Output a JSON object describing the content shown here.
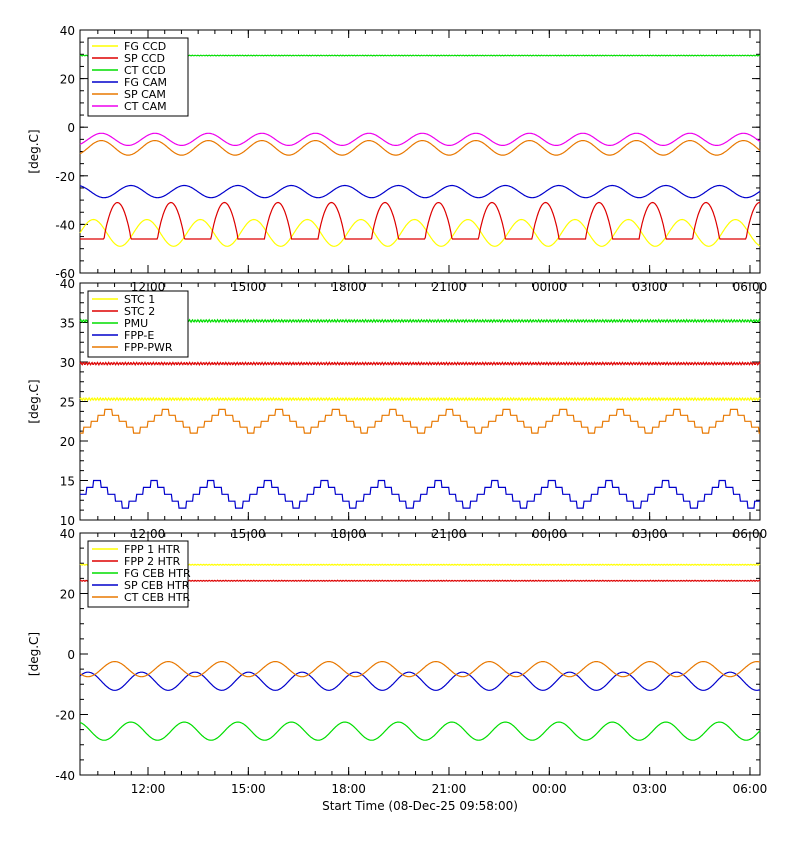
{
  "chart_data": [
    {
      "type": "line",
      "ylabel": "[deg.C]",
      "ylim": [
        -60,
        40
      ],
      "yticks": [
        40,
        20,
        0,
        -20,
        -40,
        -60
      ],
      "xlim_hours": [
        9.9667,
        30.3
      ],
      "xtick_labels": [
        "12:00",
        "15:00",
        "18:00",
        "21:00",
        "00:00",
        "03:00",
        "06:00"
      ],
      "legend_position": "top-left",
      "series": [
        {
          "name": "FG CCD",
          "color": "#ffff00",
          "shape": "sine",
          "center": -43.5,
          "amplitude": 5.5,
          "period_h": 1.6,
          "phase": 0.0
        },
        {
          "name": "SP CCD",
          "color": "#dd0000",
          "shape": "peak",
          "min": -46,
          "max": -31,
          "period_h": 1.6,
          "phase": 0.55
        },
        {
          "name": "CT CCD",
          "color": "#00dd00",
          "shape": "flat",
          "value": 29.5
        },
        {
          "name": "FG CAM",
          "color": "#0000cc",
          "shape": "sine",
          "center": -26.5,
          "amplitude": 2.5,
          "period_h": 1.6,
          "phase": 0.3
        },
        {
          "name": "SP CAM",
          "color": "#e87800",
          "shape": "sine",
          "center": -8.5,
          "amplitude": 3.0,
          "period_h": 1.6,
          "phase": 0.85
        },
        {
          "name": "CT CAM",
          "color": "#ee00ee",
          "shape": "sine",
          "center": -5.0,
          "amplitude": 2.5,
          "period_h": 1.6,
          "phase": 0.85
        }
      ]
    },
    {
      "type": "line",
      "ylabel": "[deg.C]",
      "ylim": [
        10,
        40
      ],
      "yticks": [
        40,
        35,
        30,
        25,
        20,
        15,
        10
      ],
      "xlim_hours": [
        9.9667,
        30.3
      ],
      "xtick_labels": [
        "12:00",
        "15:00",
        "18:00",
        "21:00",
        "00:00",
        "03:00",
        "06:00"
      ],
      "legend_position": "top-left",
      "series": [
        {
          "name": "STC 1",
          "color": "#ffff00",
          "shape": "flat",
          "value": 25.3
        },
        {
          "name": "STC 2",
          "color": "#dd0000",
          "shape": "flat",
          "value": 29.8
        },
        {
          "name": "PMU",
          "color": "#00dd00",
          "shape": "flat",
          "value": 35.2
        },
        {
          "name": "FPP-E",
          "color": "#0000cc",
          "shape": "steps",
          "min": 11.5,
          "max": 15,
          "period_h": 1.7,
          "phase": 0.2
        },
        {
          "name": "FPP-PWR",
          "color": "#e87800",
          "shape": "steps",
          "min": 21,
          "max": 24,
          "period_h": 1.7,
          "phase": 0.0
        }
      ]
    },
    {
      "type": "line",
      "ylabel": "[deg.C]",
      "ylim": [
        -40,
        40
      ],
      "yticks": [
        40,
        20,
        0,
        -20,
        -40
      ],
      "xlim_hours": [
        9.9667,
        30.3
      ],
      "xtick_labels": [
        "12:00",
        "15:00",
        "18:00",
        "21:00",
        "00:00",
        "03:00",
        "06:00"
      ],
      "xlabel": "Start Time (08-Dec-25 09:58:00)",
      "legend_position": "top-left",
      "series": [
        {
          "name": "FPP 1 HTR",
          "color": "#ffff00",
          "shape": "flat",
          "value": 29.5
        },
        {
          "name": "FPP 2 HTR",
          "color": "#dd0000",
          "shape": "flat",
          "value": 24.2
        },
        {
          "name": "FG CEB HTR",
          "color": "#00dd00",
          "shape": "sine",
          "center": -25.5,
          "amplitude": 3.0,
          "period_h": 1.6,
          "phase": 0.3
        },
        {
          "name": "SP CEB HTR",
          "color": "#0000cc",
          "shape": "sine",
          "center": -9.0,
          "amplitude": 3.0,
          "period_h": 1.6,
          "phase": 0.1
        },
        {
          "name": "CT CEB HTR",
          "color": "#e87800",
          "shape": "sine",
          "center": -5.0,
          "amplitude": 2.5,
          "period_h": 1.6,
          "phase": 0.6
        }
      ]
    }
  ]
}
